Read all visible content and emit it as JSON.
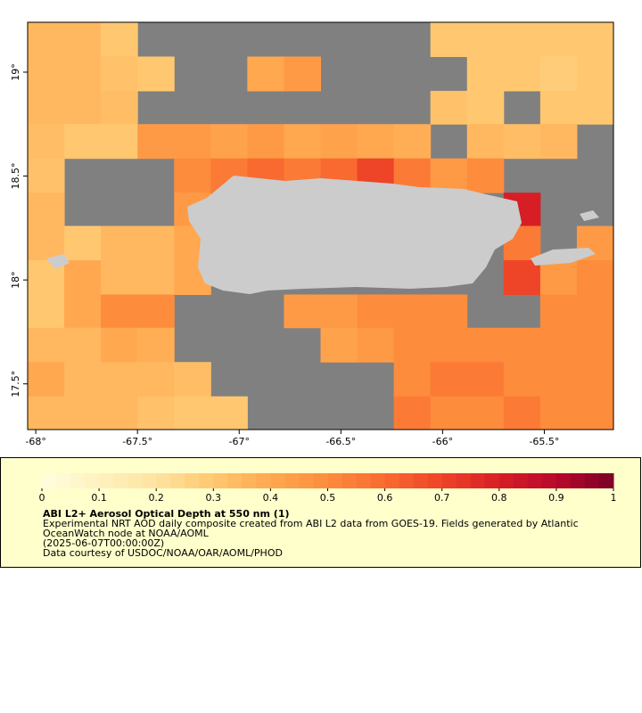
{
  "chart_data": {
    "type": "heatmap",
    "title": "ABI L2+ Aerosol Optical Depth at 550 nm (1)",
    "notes": [
      "Experimental NRT AOD daily composite created from ABI L2 data from GOES-19. Fields generated by Atlantic",
      "OceanWatch node at NOAA/AOML",
      "(2025-06-07T00:00:00Z)",
      "Data courtesy of USDOC/NOAA/OAR/AOML/PHOD"
    ],
    "x": [
      -67.95,
      -67.77,
      -67.59,
      -67.41,
      -67.23,
      -67.05,
      -66.87,
      -66.69,
      -66.51,
      -66.33,
      -66.15,
      -65.97,
      -65.79,
      -65.61,
      -65.43,
      -65.25
    ],
    "y": [
      19.16,
      18.99,
      18.83,
      18.67,
      18.5,
      18.34,
      18.18,
      18.01,
      17.85,
      17.69,
      17.52,
      17.36
    ],
    "values": [
      [
        0.35,
        0.35,
        0.3,
        null,
        null,
        null,
        null,
        null,
        null,
        null,
        null,
        0.3,
        0.3,
        0.3,
        0.3,
        0.3
      ],
      [
        0.35,
        0.35,
        0.32,
        0.3,
        null,
        null,
        0.4,
        0.45,
        null,
        null,
        null,
        null,
        0.3,
        0.3,
        0.28,
        0.3
      ],
      [
        0.35,
        0.35,
        0.33,
        null,
        null,
        null,
        null,
        null,
        null,
        null,
        null,
        0.32,
        0.3,
        null,
        0.3,
        0.3
      ],
      [
        0.33,
        0.3,
        0.3,
        0.45,
        0.45,
        0.42,
        0.45,
        0.4,
        0.42,
        0.4,
        0.38,
        null,
        0.35,
        0.33,
        0.35,
        null
      ],
      [
        0.32,
        null,
        null,
        null,
        0.5,
        0.55,
        0.6,
        0.55,
        0.6,
        0.7,
        0.55,
        0.45,
        0.5,
        null,
        null,
        null
      ],
      [
        0.35,
        null,
        null,
        null,
        0.45,
        null,
        null,
        null,
        null,
        null,
        null,
        null,
        null,
        0.8,
        null,
        null
      ],
      [
        0.35,
        0.3,
        0.35,
        0.35,
        0.4,
        null,
        null,
        null,
        null,
        null,
        null,
        null,
        null,
        0.55,
        null,
        0.45
      ],
      [
        0.3,
        0.4,
        0.35,
        0.35,
        0.4,
        null,
        null,
        null,
        null,
        null,
        null,
        null,
        null,
        0.7,
        0.45,
        0.5
      ],
      [
        0.3,
        0.4,
        0.5,
        0.5,
        null,
        null,
        null,
        0.45,
        0.45,
        0.5,
        0.5,
        0.5,
        null,
        null,
        0.5,
        0.5
      ],
      [
        0.35,
        0.35,
        0.4,
        0.38,
        null,
        null,
        null,
        null,
        0.42,
        0.45,
        0.5,
        0.5,
        0.5,
        0.5,
        0.5,
        0.5
      ],
      [
        0.4,
        0.35,
        0.35,
        0.35,
        0.33,
        null,
        null,
        null,
        null,
        null,
        0.5,
        0.55,
        0.55,
        0.5,
        0.5,
        0.5
      ],
      [
        0.35,
        0.35,
        0.35,
        0.32,
        0.3,
        0.3,
        null,
        null,
        null,
        null,
        0.55,
        0.5,
        0.5,
        0.55,
        0.5,
        0.5
      ]
    ],
    "xlim": [
      -68.04,
      -65.16
    ],
    "ylim": [
      17.28,
      19.24
    ],
    "xticks": [
      {
        "value": -68,
        "label": "-68°"
      },
      {
        "value": -67.5,
        "label": "-67.5°"
      },
      {
        "value": -67,
        "label": "-67°"
      },
      {
        "value": -66.5,
        "label": "-66.5°"
      },
      {
        "value": -66,
        "label": "-66°"
      },
      {
        "value": -65.5,
        "label": "-65.5°"
      }
    ],
    "yticks": [
      {
        "value": 17.5,
        "label": "17.5°"
      },
      {
        "value": 18,
        "label": "18°"
      },
      {
        "value": 18.5,
        "label": "18.5°"
      },
      {
        "value": 19,
        "label": "19°"
      }
    ],
    "nodata_color": "#808080",
    "colormap": [
      "#fffde0",
      "#fff2bf",
      "#fee3a0",
      "#ffc870",
      "#ffa850",
      "#fd8c3c",
      "#f96a30",
      "#ee4428",
      "#d71e24",
      "#b8082c",
      "#7a0025"
    ],
    "colorbar_lim": [
      0,
      1
    ],
    "colorbar_steps": 40,
    "colorbar_ticks": [
      0,
      0.1,
      0.2,
      0.3,
      0.4,
      0.5,
      0.6,
      0.7,
      0.8,
      0.9,
      1
    ]
  }
}
